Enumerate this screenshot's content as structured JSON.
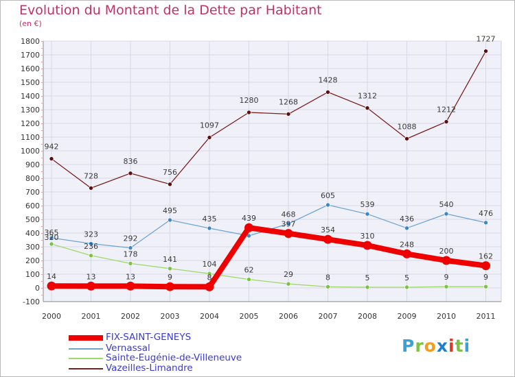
{
  "title": "Evolution du Montant de la Dette par Habitant",
  "subtitle": "(en €)",
  "logo": {
    "text": "Proxiti",
    "letters": [
      "P",
      "r",
      "o",
      "x",
      "i",
      "t",
      "i"
    ],
    "colors": [
      "#3aa0d8",
      "#7dc242",
      "#f39c1f",
      "#1f7dd0",
      "#e2362b",
      "#7dc242",
      "#3aa0d8"
    ]
  },
  "chart_data": {
    "type": "line",
    "title": "Evolution du Montant de la Dette par Habitant",
    "ylabel": "(en €)",
    "xlabel": "",
    "categories": [
      "2000",
      "2001",
      "2002",
      "2003",
      "2004",
      "2005",
      "2006",
      "2007",
      "2008",
      "2009",
      "2010",
      "2011"
    ],
    "ylim": [
      -100,
      1800
    ],
    "yticks": [
      "-100",
      "0",
      "100",
      "200",
      "300",
      "400",
      "500",
      "600",
      "700",
      "800",
      "900",
      "1000",
      "1100",
      "1200",
      "1300",
      "1400",
      "1500",
      "1600",
      "1700",
      "1800"
    ],
    "grid": true,
    "legend": "bottom-left",
    "series": [
      {
        "name": "Vazeilles-Limandre",
        "color": "#7a1f1f",
        "marker": "#5a1010",
        "values": [
          942,
          728,
          836,
          756,
          1097,
          1280,
          1268,
          1428,
          1312,
          1088,
          1212,
          1727
        ],
        "labels": [
          "942",
          "728",
          "836",
          "756",
          "1097",
          "1280",
          "1268",
          "1428",
          "1312",
          "1088",
          "1212",
          "1727"
        ]
      },
      {
        "name": "Vernassal",
        "color": "#6ea3d0",
        "marker": "#3f86c4",
        "values": [
          365,
          323,
          292,
          495,
          435,
          380,
          468,
          605,
          539,
          436,
          540,
          476
        ],
        "labels": [
          "365",
          "323",
          "292",
          "495",
          "435",
          "",
          "468",
          "605",
          "539",
          "436",
          "540",
          "476"
        ]
      },
      {
        "name": "Sainte-Eugénie-de-Villeneuve",
        "color": "#9fd86a",
        "marker": "#7cc242",
        "values": [
          320,
          236,
          178,
          141,
          104,
          62,
          29,
          8,
          5,
          5,
          9,
          9
        ],
        "labels": [
          "320",
          "236",
          "178",
          "141",
          "104",
          "62",
          "29",
          "8",
          "5",
          "5",
          "9",
          "9"
        ]
      },
      {
        "name": "FIX-SAINT-GENEYS",
        "color": "#ee0000",
        "marker": "#ee0000",
        "values": [
          14,
          13,
          13,
          9,
          8,
          439,
          397,
          354,
          310,
          248,
          200,
          162
        ],
        "labels": [
          "14",
          "13",
          "13",
          "9",
          "8",
          "439",
          "397",
          "354",
          "310",
          "248",
          "200",
          "162"
        ]
      }
    ]
  },
  "legend": {
    "items": [
      {
        "label": "FIX-SAINT-GENEYS",
        "color": "#ee0000"
      },
      {
        "label": "Vernassal",
        "color": "#6ea3d0"
      },
      {
        "label": "Sainte-Eugénie-de-Villeneuve",
        "color": "#9fd86a"
      },
      {
        "label": "Vazeilles-Limandre",
        "color": "#7a1f1f"
      }
    ]
  }
}
